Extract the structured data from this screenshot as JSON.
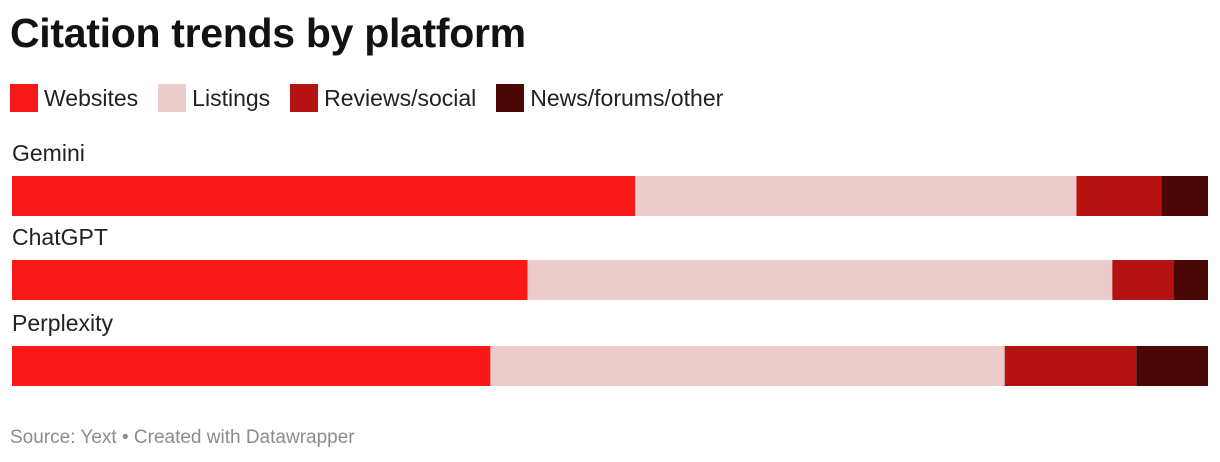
{
  "title": "Citation trends by platform",
  "footer": "Source: Yext • Created with Datawrapper",
  "chart_data": {
    "type": "bar",
    "orientation": "horizontal",
    "stacked": true,
    "normalized_to": 100,
    "categories": [
      "Gemini",
      "ChatGPT",
      "Perplexity"
    ],
    "series": [
      {
        "name": "Websites",
        "color": "#f71817",
        "values": [
          52.1,
          43.1,
          40.0
        ]
      },
      {
        "name": "Listings",
        "color": "#ecccca",
        "values": [
          36.9,
          48.9,
          43.0
        ]
      },
      {
        "name": "Reviews/social",
        "color": "#b41311",
        "values": [
          7.1,
          5.1,
          11.0
        ]
      },
      {
        "name": "News/forums/other",
        "color": "#4b0606",
        "values": [
          3.9,
          2.9,
          6.0
        ]
      }
    ],
    "grid": false,
    "legend_position": "top-left"
  }
}
